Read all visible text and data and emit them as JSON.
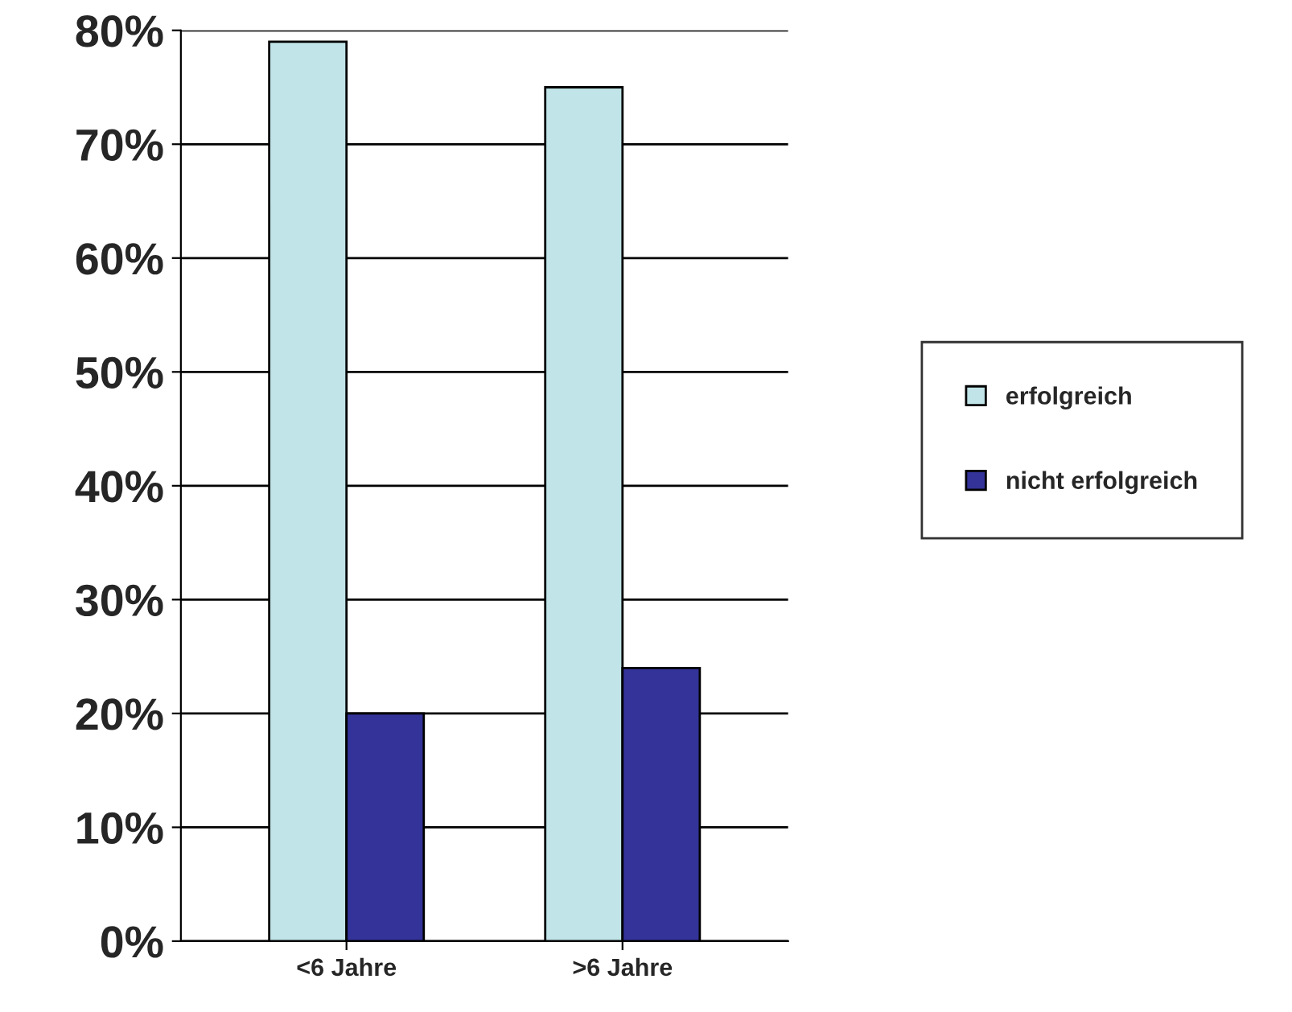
{
  "chart_data": {
    "type": "bar",
    "categories": [
      "<6 Jahre",
      ">6 Jahre"
    ],
    "series": [
      {
        "name": "erfolgreich",
        "color": "#c0e4e8",
        "values": [
          79,
          75
        ]
      },
      {
        "name": "nicht erfolgreich",
        "color": "#333399",
        "values": [
          20,
          24
        ]
      }
    ],
    "ylim": [
      0,
      80
    ],
    "yticks": [
      {
        "value": 0,
        "label": "0%"
      },
      {
        "value": 10,
        "label": "10%"
      },
      {
        "value": 20,
        "label": "20%"
      },
      {
        "value": 30,
        "label": "30%"
      },
      {
        "value": 40,
        "label": "40%"
      },
      {
        "value": 50,
        "label": "50%"
      },
      {
        "value": 60,
        "label": "60%"
      },
      {
        "value": 70,
        "label": "70%"
      },
      {
        "value": 80,
        "label": "80%"
      }
    ],
    "grid": "y",
    "legend": "right"
  }
}
